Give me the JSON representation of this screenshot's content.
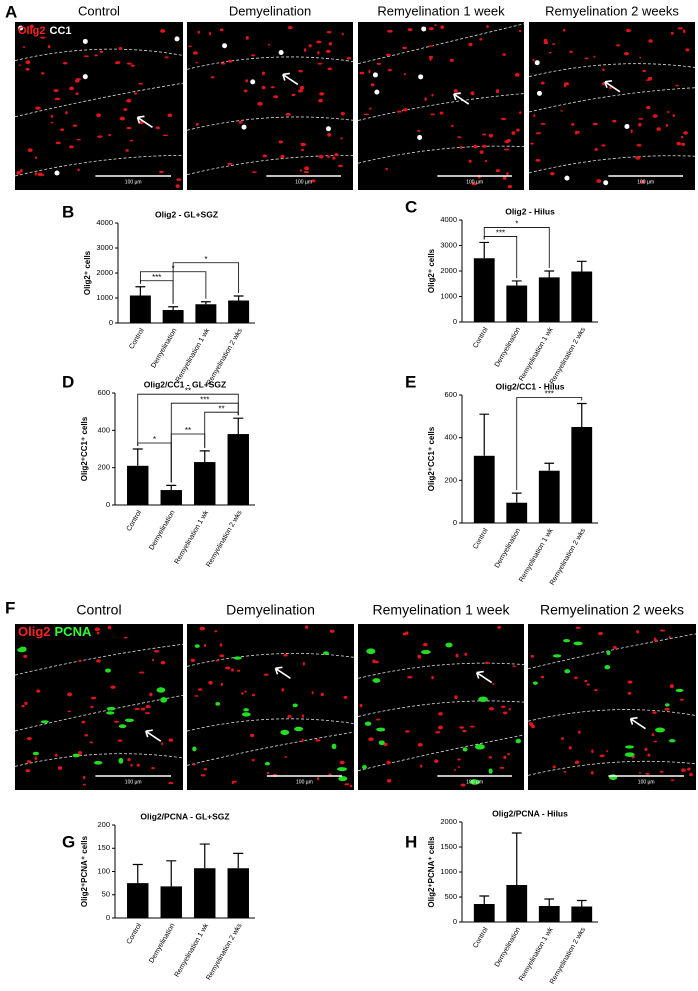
{
  "image_panels": [
    {
      "panel": "A",
      "conditions": [
        "Control",
        "Demyelination",
        "Remyelination 1 week",
        "Remyelination 2 weeks"
      ],
      "stains": [
        "Olig2",
        "CC1"
      ],
      "scale_bar": "100 µm"
    },
    {
      "panel": "F",
      "conditions": [
        "Control",
        "Demyelination",
        "Remyelination 1 week",
        "Remyelination 2 weeks"
      ],
      "stains": [
        "Olig2",
        "PCNA"
      ],
      "scale_bar": "100 µm"
    }
  ],
  "chart_data": [
    {
      "type": "bar",
      "panel": "B",
      "title": "Olig2 - GL+SGZ",
      "ylabel": "Olig2⁺ cells",
      "categories": [
        "Control",
        "Demyelination",
        "Remyelination 1 wk",
        "Remyelination 2 wks"
      ],
      "values": [
        1100,
        520,
        750,
        900
      ],
      "errors": [
        350,
        130,
        100,
        180
      ],
      "color": "#000000",
      "ylim": [
        0,
        4000
      ],
      "yticks": [
        0,
        1000,
        2000,
        3000,
        4000
      ],
      "annotations": [
        {
          "label": "***",
          "from": 0,
          "to": 1
        },
        {
          "label": "*",
          "from": 0,
          "to": 2
        },
        {
          "label": "*",
          "from": 1,
          "to": 3
        }
      ]
    },
    {
      "type": "bar",
      "panel": "C",
      "title": "Olig2 - Hilus",
      "ylabel": "Olig2⁺ cells",
      "categories": [
        "Control",
        "Demyelination",
        "Remyelination 1 wk",
        "Remyelination 2 wks"
      ],
      "values": [
        2500,
        1430,
        1750,
        1980
      ],
      "errors": [
        620,
        180,
        250,
        400
      ],
      "color": "#000000",
      "ylim": [
        0,
        4000
      ],
      "yticks": [
        0,
        1000,
        2000,
        3000,
        4000
      ],
      "annotations": [
        {
          "label": "***",
          "from": 0,
          "to": 1
        },
        {
          "label": "*",
          "from": 0,
          "to": 2
        }
      ]
    },
    {
      "type": "bar",
      "panel": "D",
      "title": "Olig2/CC1 - GL+SGZ",
      "ylabel": "Olig2⁺CC1⁺ cells",
      "categories": [
        "Control",
        "Demyelination",
        "Remyelination 1 wk",
        "Remyelination 2 wks"
      ],
      "values": [
        210,
        80,
        230,
        380
      ],
      "errors": [
        90,
        25,
        60,
        85
      ],
      "color": "#000000",
      "ylim": [
        0,
        600
      ],
      "yticks": [
        0,
        200,
        400,
        600
      ],
      "annotations": [
        {
          "label": "*",
          "from": 0,
          "to": 1
        },
        {
          "label": "**",
          "from": 1,
          "to": 2
        },
        {
          "label": "**",
          "from": 2,
          "to": 3
        },
        {
          "label": "***",
          "from": 1,
          "to": 3
        },
        {
          "label": "**",
          "from": 0,
          "to": 3
        }
      ]
    },
    {
      "type": "bar",
      "panel": "E",
      "title": "Olig2/CC1 - Hilus",
      "ylabel": "Olig2⁺CC1⁺ cells",
      "categories": [
        "Control",
        "Demyelination",
        "Remyelination 1 wk",
        "Remyelination 2 wks"
      ],
      "values": [
        315,
        95,
        245,
        450
      ],
      "errors": [
        195,
        45,
        35,
        110
      ],
      "color": "#000000",
      "ylim": [
        0,
        600
      ],
      "yticks": [
        0,
        200,
        400,
        600
      ],
      "annotations": [
        {
          "label": "***",
          "from": 1,
          "to": 3
        }
      ]
    },
    {
      "type": "bar",
      "panel": "G",
      "title": "Olig2/PCNA - GL+SGZ",
      "ylabel": "Olig2⁺PCNA⁺ cells",
      "categories": [
        "Control",
        "Demyelination",
        "Remyelination 1 wk",
        "Remyelination 2 wks"
      ],
      "values": [
        75,
        68,
        107,
        107
      ],
      "errors": [
        40,
        55,
        52,
        32
      ],
      "color": "#000000",
      "ylim": [
        0,
        200
      ],
      "yticks": [
        0,
        50,
        100,
        150,
        200
      ],
      "annotations": []
    },
    {
      "type": "bar",
      "panel": "H",
      "title": "Olig2/PCNA - Hilus",
      "ylabel": "Olig2⁺PCNA⁺ cells",
      "categories": [
        "Control",
        "Demyelination",
        "Remyelination 1 wk",
        "Remyelination 2 wks"
      ],
      "values": [
        360,
        740,
        320,
        310
      ],
      "errors": [
        160,
        1040,
        140,
        120
      ],
      "color": "#000000",
      "ylim": [
        0,
        2000
      ],
      "yticks": [
        0,
        500,
        1000,
        1500,
        2000
      ],
      "annotations": []
    }
  ]
}
